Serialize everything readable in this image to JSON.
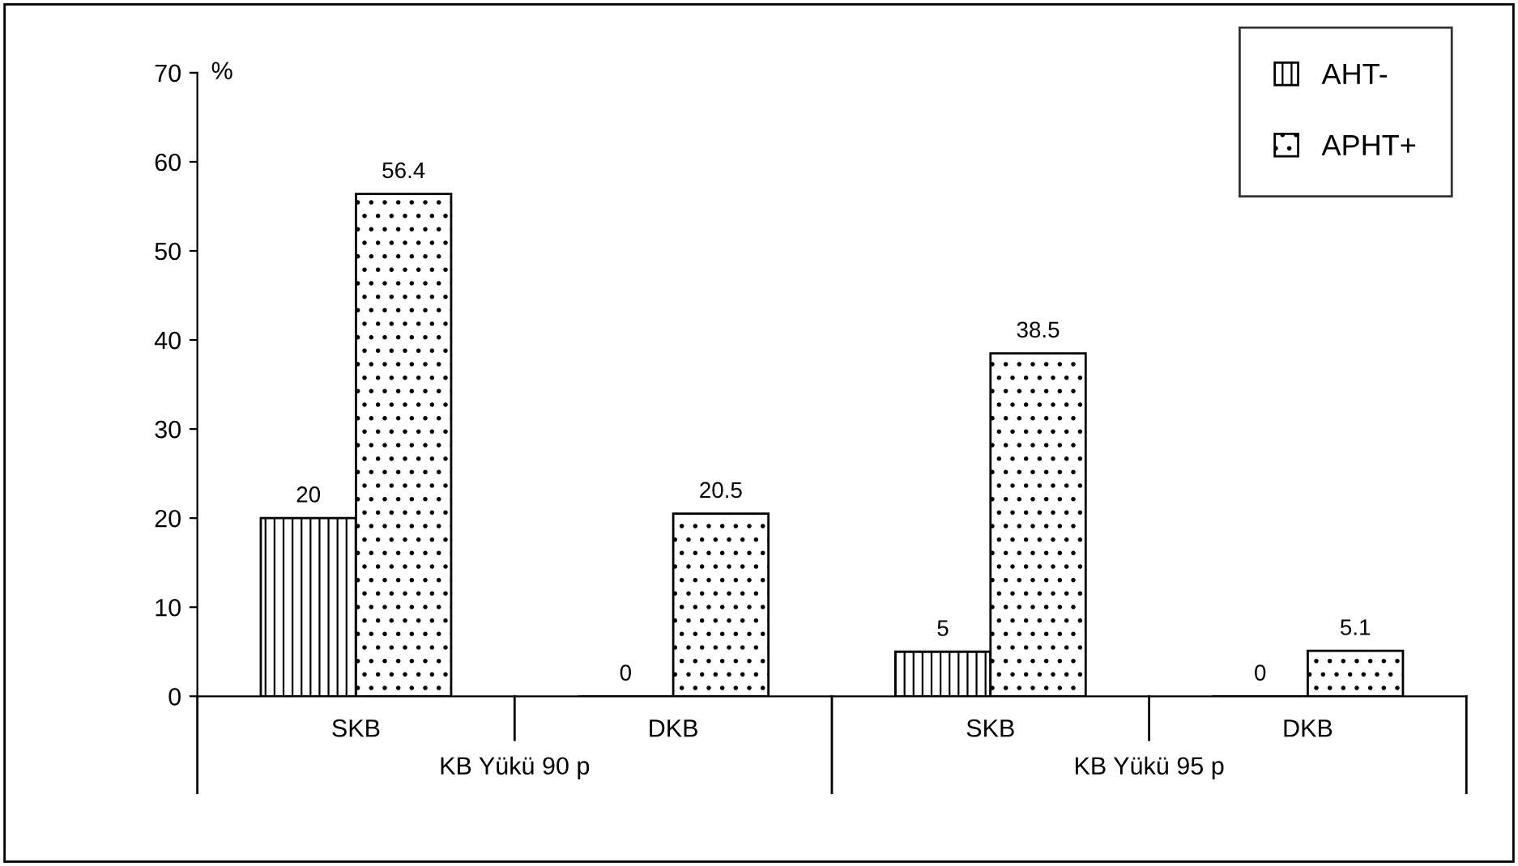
{
  "chart_data": {
    "type": "bar",
    "categories": [
      "SKB",
      "DKB",
      "SKB",
      "DKB"
    ],
    "series": [
      {
        "name": "AHT-",
        "color": "#000000",
        "values": [
          20,
          0,
          5,
          0
        ]
      },
      {
        "name": "APHT+",
        "color": "#000000",
        "values": [
          56.4,
          20.5,
          38.5,
          5.1
        ]
      }
    ],
    "ylabel": "%",
    "ylim": [
      0,
      70
    ],
    "yticks": [
      0,
      10,
      20,
      30,
      40,
      50,
      60,
      70
    ],
    "annotations": [
      "KB Yükü 90 p",
      "KB Yükü 95 p"
    ],
    "data_labels": true,
    "grid": false,
    "legend": "top right"
  }
}
